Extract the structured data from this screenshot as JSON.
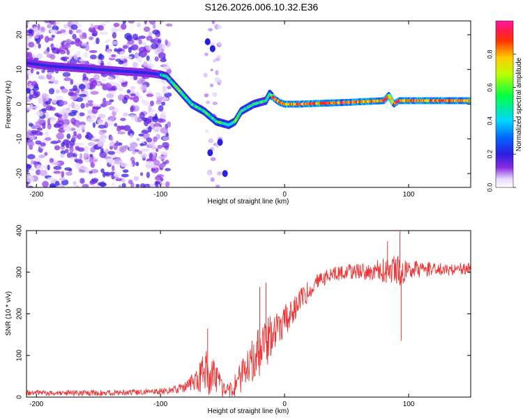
{
  "title": "S126.2026.006.10.32.E36",
  "chart_data": [
    {
      "type": "heatmap",
      "xlabel": "Height of straight line (km)",
      "ylabel": "Frequency (Hz)",
      "xlim": [
        -208,
        150
      ],
      "ylim": [
        -24,
        24
      ],
      "xticks": [
        -200,
        -100,
        0,
        100
      ],
      "yticks": [
        20,
        10,
        0,
        -10,
        -20
      ],
      "colorbar": {
        "label": "Normalized spectral amplitude",
        "range": [
          0,
          1
        ],
        "ticks": [
          "0.0",
          "0.2",
          "0.4",
          "0.6",
          "0.8"
        ]
      },
      "ridge": {
        "x": [
          -210,
          -190,
          -170,
          -150,
          -130,
          -110,
          -100,
          -95,
          -90,
          -85,
          -80,
          -75,
          -70,
          -65,
          -60,
          -55,
          -50,
          -45,
          -40,
          -35,
          -30,
          -25,
          -20,
          -15,
          -12,
          -8,
          -4,
          0,
          10,
          50,
          80,
          84,
          88,
          92,
          100,
          150
        ],
        "freq": [
          12,
          11,
          10.5,
          10,
          9.5,
          9,
          8.5,
          8,
          6,
          4,
          2,
          0,
          -1,
          -2,
          -3.5,
          -5,
          -5.5,
          -6,
          -5,
          -2,
          -1,
          0,
          0.5,
          1,
          3,
          1.5,
          0.5,
          0,
          0,
          0.5,
          1,
          2.5,
          0,
          1,
          1,
          1
        ]
      },
      "noise_region": [
        -210,
        -93
      ],
      "spots": [
        {
          "x": -52,
          "f": -11
        },
        {
          "x": -48,
          "f": -20
        },
        {
          "x": -60,
          "f": -14
        },
        {
          "x": -58,
          "f": 16
        },
        {
          "x": -62,
          "f": 18
        }
      ]
    },
    {
      "type": "line",
      "xlabel": "Height of straight line (km)",
      "ylabel": "SNR (10 * v/v)",
      "xlim": [
        -208,
        150
      ],
      "ylim": [
        0,
        400
      ],
      "xticks": [
        -200,
        -100,
        0,
        100
      ],
      "yticks": [
        0,
        100,
        200,
        300,
        400
      ],
      "color": "#ee3333",
      "series": {
        "name": "SNR",
        "x": [
          -210,
          -150,
          -110,
          -95,
          -85,
          -78,
          -70,
          -65,
          -60,
          -55,
          -50,
          -45,
          -40,
          -35,
          -30,
          -25,
          -20,
          -15,
          -10,
          -5,
          0,
          5,
          10,
          15,
          20,
          25,
          30,
          40,
          50,
          60,
          70,
          80,
          86,
          90,
          93,
          95,
          100,
          110,
          120,
          130,
          140,
          150
        ],
        "mean": [
          10,
          10,
          12,
          15,
          20,
          30,
          45,
          60,
          55,
          40,
          20,
          15,
          25,
          45,
          70,
          90,
          110,
          130,
          150,
          170,
          185,
          200,
          220,
          240,
          260,
          275,
          285,
          295,
          300,
          303,
          305,
          305,
          305,
          300,
          310,
          300,
          310,
          305,
          310,
          305,
          308,
          310
        ],
        "amp": [
          6,
          7,
          8,
          8,
          10,
          15,
          30,
          60,
          55,
          40,
          20,
          15,
          30,
          40,
          50,
          55,
          60,
          60,
          50,
          45,
          40,
          40,
          35,
          30,
          25,
          20,
          20,
          18,
          18,
          20,
          25,
          30,
          35,
          40,
          50,
          30,
          22,
          20,
          16,
          14,
          14,
          14
        ],
        "features": [
          {
            "x": 93,
            "y": 400
          },
          {
            "x": 94,
            "y": 135
          },
          {
            "x": 83,
            "y": 375
          },
          {
            "x": -62,
            "y": 165
          },
          {
            "x": -15,
            "y": 275
          },
          {
            "x": -20,
            "y": 265
          }
        ]
      }
    }
  ]
}
